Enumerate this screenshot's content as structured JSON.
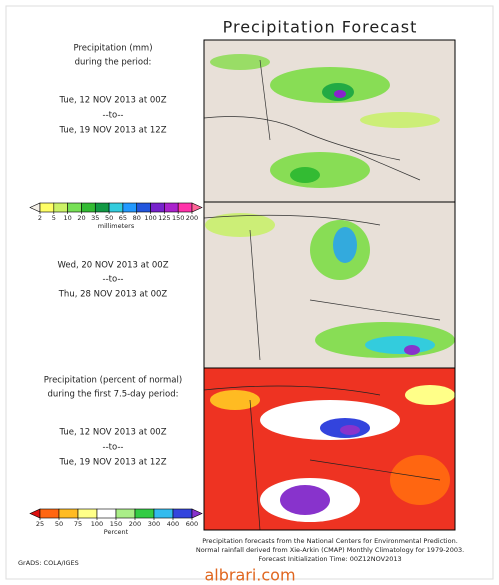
{
  "title": "Precipitation Forecast",
  "panels": [
    {
      "lines": [
        "Precipitation (mm)",
        "during the period:",
        "Tue, 12 NOV 2013 at 00Z",
        "--to--",
        "Tue, 19 NOV 2013 at 12Z"
      ]
    },
    {
      "lines": [
        "Wed, 20 NOV 2013 at 00Z",
        "--to--",
        "Thu, 28 NOV 2013 at 00Z"
      ]
    },
    {
      "lines": [
        "Precipitation (percent of normal)",
        "during the first 7.5-day period:",
        "Tue, 12 NOV 2013 at 00Z",
        "--to--",
        "Tue, 19 NOV 2013 at 12Z"
      ]
    }
  ],
  "colorbars": [
    {
      "ticks": [
        2,
        5,
        10,
        20,
        35,
        50,
        65,
        80,
        100,
        125,
        150,
        200
      ],
      "label": "millimeters",
      "colors": [
        "#f4f0e8",
        "#ffff66",
        "#ccf266",
        "#77e055",
        "#33bb33",
        "#119944",
        "#33ccdd",
        "#2299ff",
        "#2255dd",
        "#7722cc",
        "#aa22cc",
        "#ff33aa",
        "#ff6699"
      ]
    },
    {
      "ticks": [
        25,
        50,
        75,
        100,
        150,
        200,
        300,
        400,
        600
      ],
      "label": "Percent",
      "colors": [
        "#dd1111",
        "#ff6611",
        "#ffbb22",
        "#ffff88",
        "#ffffff",
        "#aaee88",
        "#33cc44",
        "#33bbee",
        "#3344dd",
        "#8833cc"
      ]
    }
  ],
  "footer": [
    "Precipitation forecasts from the National Centers for Environmental Prediction.",
    "Normal rainfall derived from Xie-Arkin (CMAP) Monthly Climatology for 1979-2003.",
    "Forecast Initialization Time: 00Z12NOV2013"
  ],
  "credit": "GrADS: COLA/IGES",
  "watermark": "albrari.com"
}
